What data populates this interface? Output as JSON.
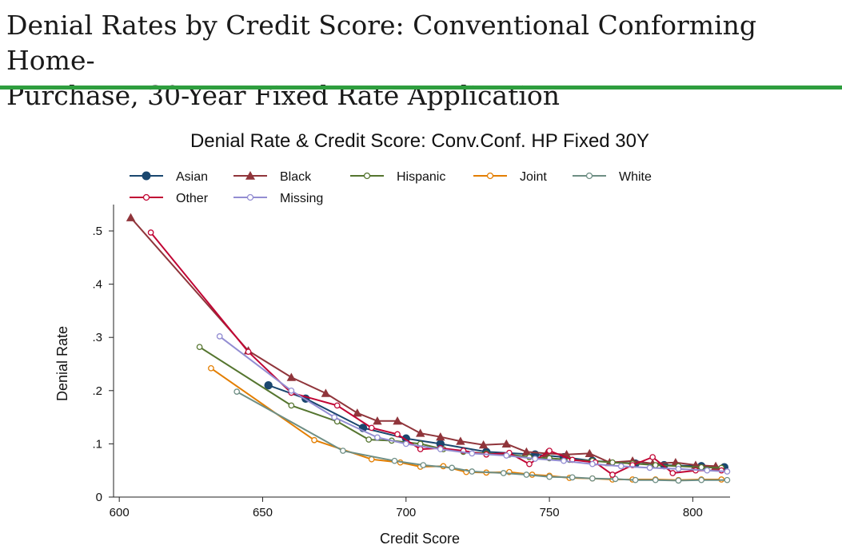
{
  "page": {
    "title_line1": "Denial Rates by Credit Score: Conventional Conforming Home-",
    "title_line2": "Purchase, 30-Year Fixed Rate Application",
    "rule_color": "#2e9e3e"
  },
  "chart_data": {
    "type": "line",
    "title": "Denial Rate & Credit Score: Conv.Conf. HP Fixed 30Y",
    "xlabel": "Credit Score",
    "ylabel": "Denial Rate",
    "xlim": [
      598,
      813
    ],
    "ylim": [
      0,
      0.5
    ],
    "xticks": [
      600,
      650,
      700,
      750,
      800
    ],
    "yticks": [
      0,
      0.1,
      0.2,
      0.3,
      0.4,
      0.5
    ],
    "ytick_labels": [
      "0",
      ".1",
      ".2",
      ".3",
      ".4",
      ".5"
    ],
    "grid": false,
    "legend_position": "top",
    "series": [
      {
        "name": "Asian",
        "color": "#1a476f",
        "marker": "filled-circle",
        "x": [
          652,
          665,
          685,
          700,
          712,
          728,
          745,
          755,
          765,
          780,
          790,
          803,
          811
        ],
        "y": [
          0.21,
          0.185,
          0.13,
          0.11,
          0.1,
          0.085,
          0.08,
          0.075,
          0.068,
          0.063,
          0.06,
          0.058,
          0.056
        ]
      },
      {
        "name": "Black",
        "color": "#90353b",
        "marker": "filled-triangle",
        "x": [
          604,
          645,
          660,
          672,
          683,
          690,
          697,
          705,
          712,
          719,
          727,
          735,
          742,
          749,
          756,
          764,
          771,
          779,
          786,
          794,
          801,
          808
        ],
        "y": [
          0.525,
          0.275,
          0.225,
          0.195,
          0.158,
          0.143,
          0.143,
          0.12,
          0.113,
          0.105,
          0.098,
          0.1,
          0.085,
          0.082,
          0.08,
          0.082,
          0.065,
          0.068,
          0.063,
          0.065,
          0.06,
          0.058
        ]
      },
      {
        "name": "Hispanic",
        "color": "#55752f",
        "marker": "open-circle",
        "x": [
          628,
          660,
          676,
          687,
          695,
          705,
          713,
          720,
          728,
          736,
          743,
          750,
          757,
          765,
          772,
          779,
          787,
          795,
          803,
          810
        ],
        "y": [
          0.282,
          0.172,
          0.142,
          0.108,
          0.106,
          0.1,
          0.09,
          0.085,
          0.082,
          0.08,
          0.075,
          0.073,
          0.07,
          0.068,
          0.065,
          0.063,
          0.06,
          0.058,
          0.056,
          0.055
        ]
      },
      {
        "name": "Joint",
        "color": "#e37e00",
        "marker": "open-circle",
        "x": [
          632,
          668,
          688,
          698,
          705,
          713,
          721,
          728,
          736,
          744,
          750,
          757,
          765,
          772,
          779,
          787,
          795,
          803,
          810
        ],
        "y": [
          0.242,
          0.107,
          0.071,
          0.065,
          0.057,
          0.058,
          0.047,
          0.046,
          0.047,
          0.042,
          0.04,
          0.036,
          0.035,
          0.033,
          0.033,
          0.033,
          0.032,
          0.033,
          0.033
        ]
      },
      {
        "name": "White",
        "color": "#6e8e84",
        "marker": "open-circle",
        "x": [
          641,
          678,
          696,
          706,
          716,
          723,
          734,
          742,
          750,
          758,
          765,
          773,
          780,
          787,
          795,
          803,
          812
        ],
        "y": [
          0.198,
          0.087,
          0.068,
          0.06,
          0.055,
          0.048,
          0.045,
          0.042,
          0.038,
          0.037,
          0.035,
          0.034,
          0.032,
          0.032,
          0.031,
          0.032,
          0.032
        ]
      },
      {
        "name": "Other",
        "color": "#c10534",
        "marker": "open-circle",
        "x": [
          611,
          645,
          660,
          676,
          688,
          697,
          705,
          712,
          720,
          728,
          736,
          743,
          750,
          758,
          766,
          772,
          779,
          786,
          793,
          801,
          810
        ],
        "y": [
          0.497,
          0.273,
          0.196,
          0.172,
          0.13,
          0.118,
          0.09,
          0.092,
          0.087,
          0.08,
          0.083,
          0.062,
          0.087,
          0.07,
          0.065,
          0.042,
          0.06,
          0.075,
          0.045,
          0.05,
          0.05
        ]
      },
      {
        "name": "Missing",
        "color": "#938dd2",
        "marker": "open-circle",
        "x": [
          635,
          660,
          675,
          690,
          700,
          712,
          723,
          735,
          745,
          755,
          765,
          775,
          785,
          795,
          805,
          812
        ],
        "y": [
          0.302,
          0.2,
          0.15,
          0.112,
          0.1,
          0.09,
          0.082,
          0.078,
          0.072,
          0.068,
          0.062,
          0.058,
          0.055,
          0.053,
          0.05,
          0.048
        ]
      }
    ]
  }
}
